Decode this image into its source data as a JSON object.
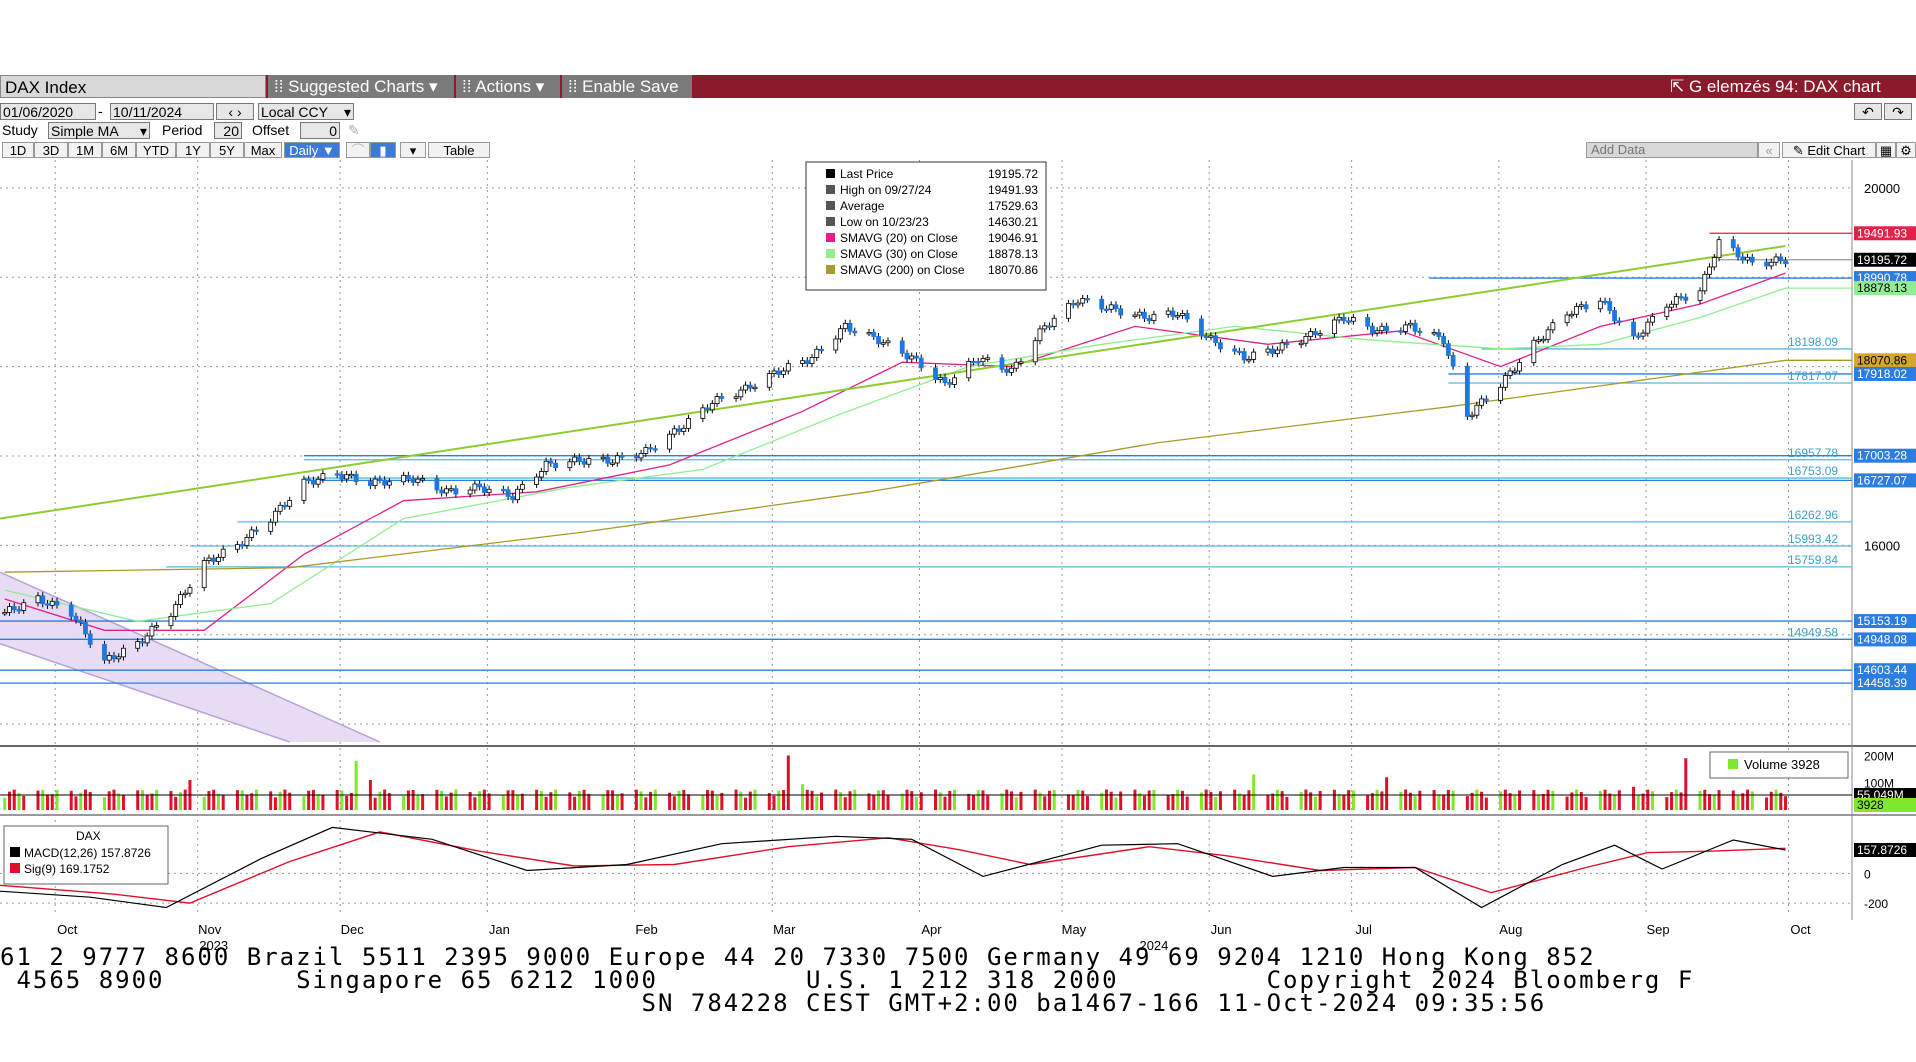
{
  "toolbar": {
    "security": "DAX Index",
    "suggested_charts": "Suggested Charts",
    "actions": "Actions",
    "enable_save": "Enable Save",
    "window_title": "G elemzés 94: DAX chart"
  },
  "controls": {
    "start_date": "01/06/2020",
    "end_date": "10/11/2024",
    "currency": "Local CCY",
    "study_label": "Study",
    "study_value": "Simple MA",
    "period_label": "Period",
    "period_value": "20",
    "offset_label": "Offset",
    "offset_value": "0",
    "range_buttons": [
      "1D",
      "3D",
      "1M",
      "6M",
      "YTD",
      "1Y",
      "5Y",
      "Max"
    ],
    "frequency": "Daily",
    "table_label": "Table",
    "add_data_placeholder": "Add Data",
    "edit_chart": "Edit Chart"
  },
  "legend": {
    "rows": [
      {
        "label": "Last Price",
        "value": "19195.72",
        "color": "#000000"
      },
      {
        "label": "High on 09/27/24",
        "value": "19491.93",
        "color": "#555555"
      },
      {
        "label": "Average",
        "value": "17529.63",
        "color": "#555555"
      },
      {
        "label": "Low on 10/23/23",
        "value": "14630.21",
        "color": "#555555"
      },
      {
        "label": "SMAVG (20)  on Close",
        "value": "19046.91",
        "color": "#e0218a"
      },
      {
        "label": "SMAVG (30)  on Close",
        "value": "18878.13",
        "color": "#90ee90"
      },
      {
        "label": "SMAVG (200)  on Close",
        "value": "18070.86",
        "color": "#a89a2a"
      }
    ]
  },
  "chart_data": {
    "type": "line",
    "title": "DAX Index",
    "x_start": "2023-10-01",
    "x_end": "2024-10-11",
    "x_ticks": [
      {
        "date": "2023-10-16",
        "label": "Oct"
      },
      {
        "date": "2023-11-15",
        "label": "Nov"
      },
      {
        "date": "2023-12-15",
        "label": "Dec"
      },
      {
        "date": "2024-01-15",
        "label": "Jan"
      },
      {
        "date": "2024-02-15",
        "label": "Feb"
      },
      {
        "date": "2024-03-15",
        "label": "Mar"
      },
      {
        "date": "2024-04-15",
        "label": "Apr"
      },
      {
        "date": "2024-05-15",
        "label": "May"
      },
      {
        "date": "2024-06-15",
        "label": "Jun"
      },
      {
        "date": "2024-07-15",
        "label": "Jul"
      },
      {
        "date": "2024-08-15",
        "label": "Aug"
      },
      {
        "date": "2024-09-15",
        "label": "Sep"
      },
      {
        "date": "2024-10-15",
        "label": "Oct"
      }
    ],
    "year_labels": [
      {
        "date": "2023-11-15",
        "label": "2023"
      },
      {
        "date": "2024-05-31",
        "label": "2024"
      }
    ],
    "price_ylim": [
      13800,
      20200
    ],
    "y_ticks": [
      20000,
      16000
    ],
    "price_series": {
      "name": "Last Price",
      "points": [
        [
          "2023-10-02",
          15250
        ],
        [
          "2023-10-09",
          15400
        ],
        [
          "2023-10-16",
          15250
        ],
        [
          "2023-10-23",
          14700
        ],
        [
          "2023-10-30",
          14900
        ],
        [
          "2023-11-06",
          15250
        ],
        [
          "2023-11-13",
          15800
        ],
        [
          "2023-11-20",
          16000
        ],
        [
          "2023-11-27",
          16300
        ],
        [
          "2023-12-04",
          16700
        ],
        [
          "2023-12-11",
          16800
        ],
        [
          "2023-12-18",
          16700
        ],
        [
          "2023-12-27",
          16750
        ],
        [
          "2024-01-03",
          16600
        ],
        [
          "2024-01-10",
          16650
        ],
        [
          "2024-01-17",
          16550
        ],
        [
          "2024-01-24",
          16900
        ],
        [
          "2024-01-31",
          16950
        ],
        [
          "2024-02-07",
          16950
        ],
        [
          "2024-02-14",
          17050
        ],
        [
          "2024-02-21",
          17300
        ],
        [
          "2024-02-28",
          17600
        ],
        [
          "2024-03-06",
          17750
        ],
        [
          "2024-03-13",
          17950
        ],
        [
          "2024-03-20",
          18100
        ],
        [
          "2024-03-27",
          18450
        ],
        [
          "2024-04-03",
          18300
        ],
        [
          "2024-04-10",
          18100
        ],
        [
          "2024-04-17",
          17800
        ],
        [
          "2024-04-24",
          18100
        ],
        [
          "2024-05-01",
          17950
        ],
        [
          "2024-05-08",
          18450
        ],
        [
          "2024-05-15",
          18750
        ],
        [
          "2024-05-22",
          18650
        ],
        [
          "2024-05-29",
          18550
        ],
        [
          "2024-06-05",
          18600
        ],
        [
          "2024-06-12",
          18300
        ],
        [
          "2024-06-19",
          18100
        ],
        [
          "2024-06-26",
          18200
        ],
        [
          "2024-07-03",
          18350
        ],
        [
          "2024-07-10",
          18550
        ],
        [
          "2024-07-17",
          18400
        ],
        [
          "2024-07-24",
          18450
        ],
        [
          "2024-07-31",
          18300
        ],
        [
          "2024-08-05",
          17450
        ],
        [
          "2024-08-12",
          17800
        ],
        [
          "2024-08-19",
          18250
        ],
        [
          "2024-08-26",
          18600
        ],
        [
          "2024-09-02",
          18750
        ],
        [
          "2024-09-09",
          18300
        ],
        [
          "2024-09-16",
          18700
        ],
        [
          "2024-09-23",
          18850
        ],
        [
          "2024-09-27",
          19400
        ],
        [
          "2024-10-04",
          19150
        ],
        [
          "2024-10-11",
          19195.72
        ]
      ]
    },
    "ma_series": [
      {
        "name": "SMAVG (20)",
        "color": "#e0218a",
        "points": [
          [
            "2023-10-02",
            15400
          ],
          [
            "2023-10-23",
            15050
          ],
          [
            "2023-11-13",
            15050
          ],
          [
            "2023-12-04",
            15900
          ],
          [
            "2023-12-25",
            16500
          ],
          [
            "2024-01-22",
            16600
          ],
          [
            "2024-02-19",
            16900
          ],
          [
            "2024-03-18",
            17500
          ],
          [
            "2024-04-08",
            18050
          ],
          [
            "2024-05-01",
            18000
          ],
          [
            "2024-05-27",
            18450
          ],
          [
            "2024-06-24",
            18250
          ],
          [
            "2024-07-22",
            18400
          ],
          [
            "2024-08-12",
            18000
          ],
          [
            "2024-09-02",
            18450
          ],
          [
            "2024-09-23",
            18700
          ],
          [
            "2024-10-11",
            19046.91
          ]
        ]
      },
      {
        "name": "SMAVG (30)",
        "color": "#90ee90",
        "points": [
          [
            "2023-10-02",
            15500
          ],
          [
            "2023-10-30",
            15150
          ],
          [
            "2023-11-27",
            15350
          ],
          [
            "2023-12-25",
            16300
          ],
          [
            "2024-01-29",
            16650
          ],
          [
            "2024-02-26",
            16850
          ],
          [
            "2024-03-25",
            17450
          ],
          [
            "2024-04-22",
            18000
          ],
          [
            "2024-05-20",
            18250
          ],
          [
            "2024-06-17",
            18450
          ],
          [
            "2024-07-15",
            18300
          ],
          [
            "2024-08-12",
            18200
          ],
          [
            "2024-09-02",
            18250
          ],
          [
            "2024-09-23",
            18550
          ],
          [
            "2024-10-11",
            18878.13
          ]
        ]
      },
      {
        "name": "SMAVG (200)",
        "color": "#a89a2a",
        "points": [
          [
            "2023-10-02",
            15700
          ],
          [
            "2023-12-01",
            15750
          ],
          [
            "2024-02-01",
            16150
          ],
          [
            "2024-04-01",
            16600
          ],
          [
            "2024-06-01",
            17150
          ],
          [
            "2024-08-01",
            17550
          ],
          [
            "2024-10-11",
            18070.86
          ]
        ]
      }
    ],
    "trendlines": [
      {
        "color": "#8ccc2e",
        "from": [
          "2023-10-01",
          16300
        ],
        "to": [
          "2024-10-11",
          19350
        ]
      }
    ],
    "channel": {
      "color": "#b8a0d8",
      "upper": [
        [
          "2023-10-01",
          15700
        ],
        [
          "2023-12-20",
          13800
        ]
      ],
      "lower": [
        [
          "2023-10-01",
          14900
        ],
        [
          "2023-12-01",
          13800
        ]
      ]
    },
    "hlines": [
      {
        "value": 19491.93,
        "label": "19491.93",
        "label_bg": "#e0224a",
        "line_color": "#e0224a",
        "from": "2024-09-25"
      },
      {
        "value": 19195.72,
        "label": "19195.72",
        "label_bg": "#000000",
        "line_color": "#999999",
        "from": "2024-09-27"
      },
      {
        "value": 18990.78,
        "label": "18990.78",
        "label_bg": "#2b7de0",
        "line_color": "#2b7de0",
        "from": "2024-07-28"
      },
      {
        "value": 18878.13,
        "label": "18878.13",
        "label_bg": "#90ee90",
        "line_color": "#90ee90",
        "from": "2024-10-11"
      },
      {
        "value": 18198.09,
        "label": "18198.09",
        "label_bg": "",
        "line_color": "#5bb8d8",
        "from": "2024-08-08"
      },
      {
        "value": 18070.86,
        "label": "18070.86",
        "label_bg": "#d7a52b",
        "line_color": "#a89a2a",
        "from": "2024-10-11"
      },
      {
        "value": 17918.02,
        "label": "17918.02",
        "label_bg": "#2b7de0",
        "line_color": "#2b7de0",
        "from": "2024-08-01"
      },
      {
        "value": 17817.07,
        "label": "17817.07",
        "label_bg": "",
        "line_color": "#5bb8d8",
        "from": "2024-08-01"
      },
      {
        "value": 17003.28,
        "label": "17003.28",
        "label_bg": "#2b7de0",
        "line_color": "#2b7de0",
        "from": "2023-12-04"
      },
      {
        "value": 16957.78,
        "label": "16957.78",
        "label_bg": "",
        "line_color": "#5bb8d8",
        "from": "2023-12-04"
      },
      {
        "value": 16753.09,
        "label": "16753.09",
        "label_bg": "",
        "line_color": "#5bb8d8",
        "from": "2023-12-04"
      },
      {
        "value": 16727.07,
        "label": "16727.07",
        "label_bg": "#2b7de0",
        "line_color": "#2b7de0",
        "from": "2023-12-04"
      },
      {
        "value": 16262.96,
        "label": "16262.96",
        "label_bg": "",
        "line_color": "#5bb8d8",
        "from": "2023-11-20"
      },
      {
        "value": 15993.42,
        "label": "15993.42",
        "label_bg": "",
        "line_color": "#5bb8d8",
        "from": "2023-11-10"
      },
      {
        "value": 15759.84,
        "label": "15759.84",
        "label_bg": "",
        "line_color": "#5bb8d8",
        "from": "2023-11-05"
      },
      {
        "value": 15153.19,
        "label": "15153.19",
        "label_bg": "#2b7de0",
        "line_color": "#2b7de0",
        "from": "2023-10-01"
      },
      {
        "value": 14949.58,
        "label": "14949.58",
        "label_bg": "",
        "line_color": "#5bb8d8",
        "from": "2023-10-01"
      },
      {
        "value": 14948.08,
        "label": "14948.08",
        "label_bg": "#2b7de0",
        "line_color": "#2b7de0",
        "from": "2023-10-01"
      },
      {
        "value": 14603.44,
        "label": "14603.44",
        "label_bg": "#2b7de0",
        "line_color": "#2b7de0",
        "from": "2023-10-01"
      },
      {
        "value": 14458.39,
        "label": "14458.39",
        "label_bg": "#2b7de0",
        "line_color": "#2b7de0",
        "from": "2023-10-01"
      }
    ],
    "volume": {
      "legend": "Volume",
      "legend_value": "3928",
      "ticks": [
        {
          "value": 200,
          "label": "200M"
        },
        {
          "value": 100,
          "label": "100M"
        }
      ],
      "last_avg_label": "55.049M",
      "last_label": "3928",
      "ylim": [
        0,
        220
      ],
      "avg": 55,
      "spikes": [
        {
          "date": "2023-11-10",
          "value": 110
        },
        {
          "date": "2023-12-15",
          "value": 180
        },
        {
          "date": "2023-12-18",
          "value": 110
        },
        {
          "date": "2024-03-15",
          "value": 200
        },
        {
          "date": "2024-03-18",
          "value": 95
        },
        {
          "date": "2024-06-21",
          "value": 130
        },
        {
          "date": "2024-07-19",
          "value": 120
        },
        {
          "date": "2024-09-20",
          "value": 190
        },
        {
          "date": "2024-09-09",
          "value": 85
        }
      ]
    },
    "macd": {
      "title": "DAX",
      "macd_label": "MACD(12,26)",
      "macd_value": "157.8726",
      "sig_label": "Sig(9)",
      "sig_value": "169.1752",
      "macd_color": "#000000",
      "sig_color": "#e0102a",
      "ylim": [
        -260,
        360
      ],
      "ticks": [
        {
          "value": 0,
          "label": "0"
        },
        {
          "value": -200,
          "label": "-200"
        }
      ],
      "last_label": "157.8726",
      "macd_points": [
        [
          "2023-10-01",
          -120
        ],
        [
          "2023-10-20",
          -160
        ],
        [
          "2023-11-05",
          -230
        ],
        [
          "2023-11-25",
          100
        ],
        [
          "2023-12-10",
          310
        ],
        [
          "2023-12-31",
          230
        ],
        [
          "2024-01-20",
          20
        ],
        [
          "2024-02-10",
          60
        ],
        [
          "2024-03-01",
          200
        ],
        [
          "2024-03-25",
          250
        ],
        [
          "2024-04-10",
          230
        ],
        [
          "2024-04-25",
          -20
        ],
        [
          "2024-05-20",
          190
        ],
        [
          "2024-06-05",
          200
        ],
        [
          "2024-06-25",
          -20
        ],
        [
          "2024-07-10",
          40
        ],
        [
          "2024-07-25",
          40
        ],
        [
          "2024-08-08",
          -230
        ],
        [
          "2024-08-25",
          60
        ],
        [
          "2024-09-05",
          190
        ],
        [
          "2024-09-15",
          30
        ],
        [
          "2024-09-30",
          225
        ],
        [
          "2024-10-11",
          157.87
        ]
      ],
      "sig_points": [
        [
          "2023-10-01",
          -80
        ],
        [
          "2023-10-25",
          -140
        ],
        [
          "2023-11-10",
          -200
        ],
        [
          "2023-12-01",
          80
        ],
        [
          "2023-12-20",
          280
        ],
        [
          "2024-01-10",
          150
        ],
        [
          "2024-01-30",
          50
        ],
        [
          "2024-02-20",
          60
        ],
        [
          "2024-03-15",
          180
        ],
        [
          "2024-04-05",
          240
        ],
        [
          "2024-04-20",
          160
        ],
        [
          "2024-05-05",
          60
        ],
        [
          "2024-05-30",
          180
        ],
        [
          "2024-06-15",
          120
        ],
        [
          "2024-07-05",
          20
        ],
        [
          "2024-07-25",
          40
        ],
        [
          "2024-08-10",
          -130
        ],
        [
          "2024-08-30",
          40
        ],
        [
          "2024-09-12",
          140
        ],
        [
          "2024-09-25",
          150
        ],
        [
          "2024-10-11",
          169.18
        ]
      ]
    }
  },
  "ticker_lines": [
    "61 2 9777 8600 Brazil 5511 2395 9000 Europe 44 20 7330 7500 Germany 49 69 9204 1210 Hong Kong 852",
    " 4565 8900        Singapore 65 6212 1000         U.S. 1 212 318 2000         Copyright 2024 Bloomberg F",
    "                                       SN 784228 CEST GMT+2:00 ba1467-166 11-Oct-2024 09:35:56"
  ]
}
